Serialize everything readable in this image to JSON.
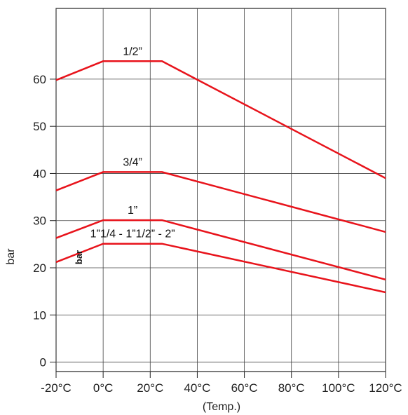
{
  "chart_data": {
    "type": "line",
    "xlabel": "(Temp.)",
    "ylabel": "bar",
    "x": [
      -20,
      0,
      25,
      120
    ],
    "xlim": [
      -20,
      120
    ],
    "ylim": [
      -2,
      75
    ],
    "x_ticks": [
      -20,
      0,
      20,
      40,
      60,
      80,
      100,
      120
    ],
    "x_tick_labels": [
      "-20°C",
      "0°C",
      "20°C",
      "40°C",
      "60°C",
      "80°C",
      "100°C",
      "120°C"
    ],
    "y_ticks": [
      0,
      10,
      20,
      30,
      40,
      50,
      60
    ],
    "y_tick_labels": [
      "0",
      "10",
      "20",
      "30",
      "40",
      "50",
      "60"
    ],
    "grid": true,
    "legend": "none",
    "line_color": "#e8131b",
    "series": [
      {
        "name": "1/2”",
        "values": [
          59.8,
          63.8,
          63.8,
          39.0
        ]
      },
      {
        "name": "3/4”",
        "values": [
          36.4,
          40.3,
          40.3,
          27.6
        ]
      },
      {
        "name": "1”",
        "values": [
          26.3,
          30.1,
          30.1,
          17.5
        ]
      },
      {
        "name": "1”1/4 - 1”1/2” - 2”",
        "values": [
          21.2,
          25.1,
          25.1,
          14.8
        ]
      }
    ],
    "annotation": "bar"
  }
}
